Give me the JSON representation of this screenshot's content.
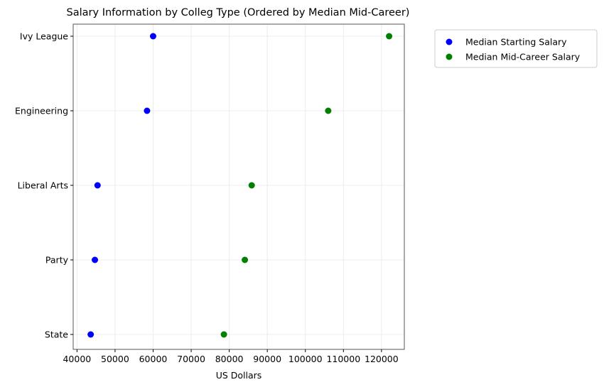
{
  "chart_data": {
    "type": "scatter",
    "title": "Salary Information by Colleg Type (Ordered by Median Mid-Career)",
    "xlabel": "US Dollars",
    "ylabel": "",
    "categories": [
      "Ivy League",
      "Engineering",
      "Liberal Arts",
      "Party",
      "State"
    ],
    "xlim": [
      39000,
      126000
    ],
    "xticks": [
      40000,
      50000,
      60000,
      70000,
      80000,
      90000,
      100000,
      110000,
      120000
    ],
    "grid": true,
    "legend_position": "outside-top-right",
    "series": [
      {
        "name": "Median Starting Salary",
        "color": "#0000ff",
        "values": [
          60000,
          58400,
          45400,
          44700,
          43600
        ]
      },
      {
        "name": "Median Mid-Career Salary",
        "color": "#008000",
        "values": [
          122000,
          106000,
          85900,
          84100,
          78600
        ]
      }
    ]
  }
}
